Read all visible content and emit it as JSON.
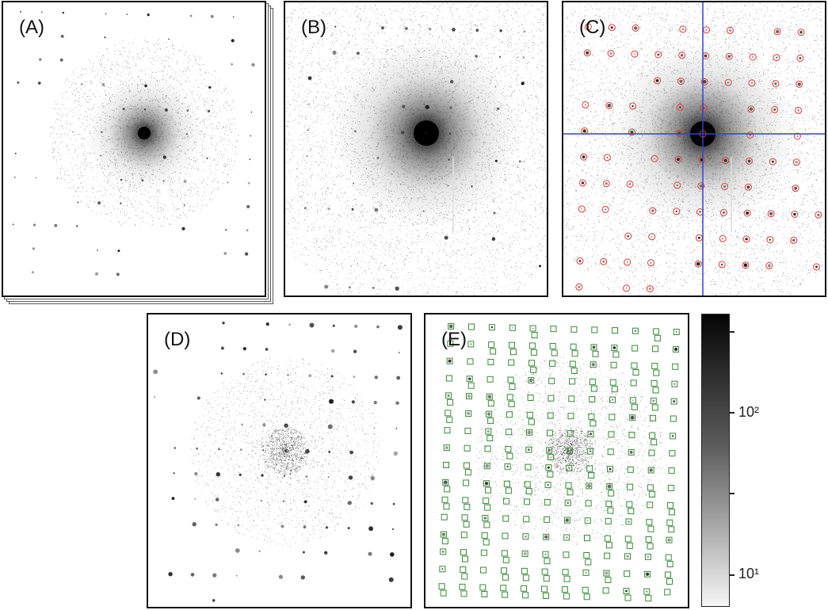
{
  "panels": {
    "a": {
      "label": "(A)"
    },
    "b": {
      "label": "(B)"
    },
    "c": {
      "label": "(C)"
    },
    "d": {
      "label": "(D)"
    },
    "e": {
      "label": "(E)"
    }
  },
  "colorbar": {
    "tick_major_high": "10²",
    "tick_major_low": "10¹"
  },
  "colors": {
    "peak_marker": "#e23a3a",
    "crosshair": "#3344cc",
    "prediction_box": "#3a8a3a",
    "spot": "#111111"
  }
}
